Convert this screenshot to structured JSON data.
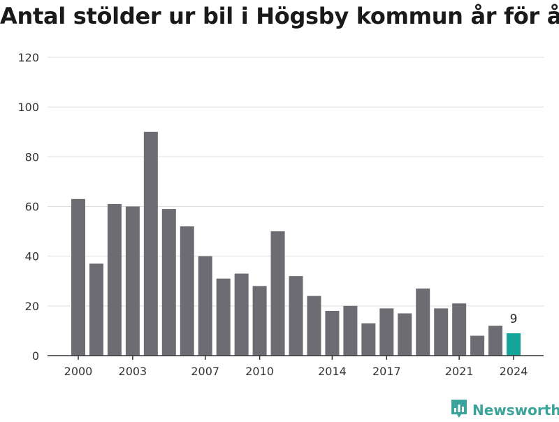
{
  "title": "Antal stölder ur bil i Högsby kommun år för år",
  "brand": {
    "name": "Newsworthy",
    "icon": "bar-chart-speech-icon",
    "color": "#3aa39a"
  },
  "colors": {
    "bar": "#6d6c72",
    "highlight": "#14a59a",
    "grid": "#dddddd",
    "axis": "#333333",
    "text": "#333333"
  },
  "chart_data": {
    "type": "bar",
    "title": "Antal stölder ur bil i Högsby kommun år för år",
    "xlabel": "",
    "ylabel": "",
    "ylim": [
      0,
      120
    ],
    "yticks": [
      0,
      20,
      40,
      60,
      80,
      100,
      120
    ],
    "grid": true,
    "categories": [
      2000,
      2001,
      2002,
      2003,
      2004,
      2005,
      2006,
      2007,
      2008,
      2009,
      2010,
      2011,
      2012,
      2013,
      2014,
      2015,
      2016,
      2017,
      2018,
      2019,
      2020,
      2021,
      2022,
      2023,
      2024
    ],
    "values": [
      63,
      37,
      61,
      60,
      90,
      59,
      52,
      40,
      31,
      33,
      28,
      50,
      32,
      24,
      18,
      20,
      13,
      19,
      17,
      27,
      19,
      21,
      8,
      12,
      9
    ],
    "xtick_labels": [
      2000,
      2003,
      2007,
      2010,
      2014,
      2017,
      2021,
      2024
    ],
    "highlight": {
      "category": 2024,
      "label": "9"
    }
  }
}
